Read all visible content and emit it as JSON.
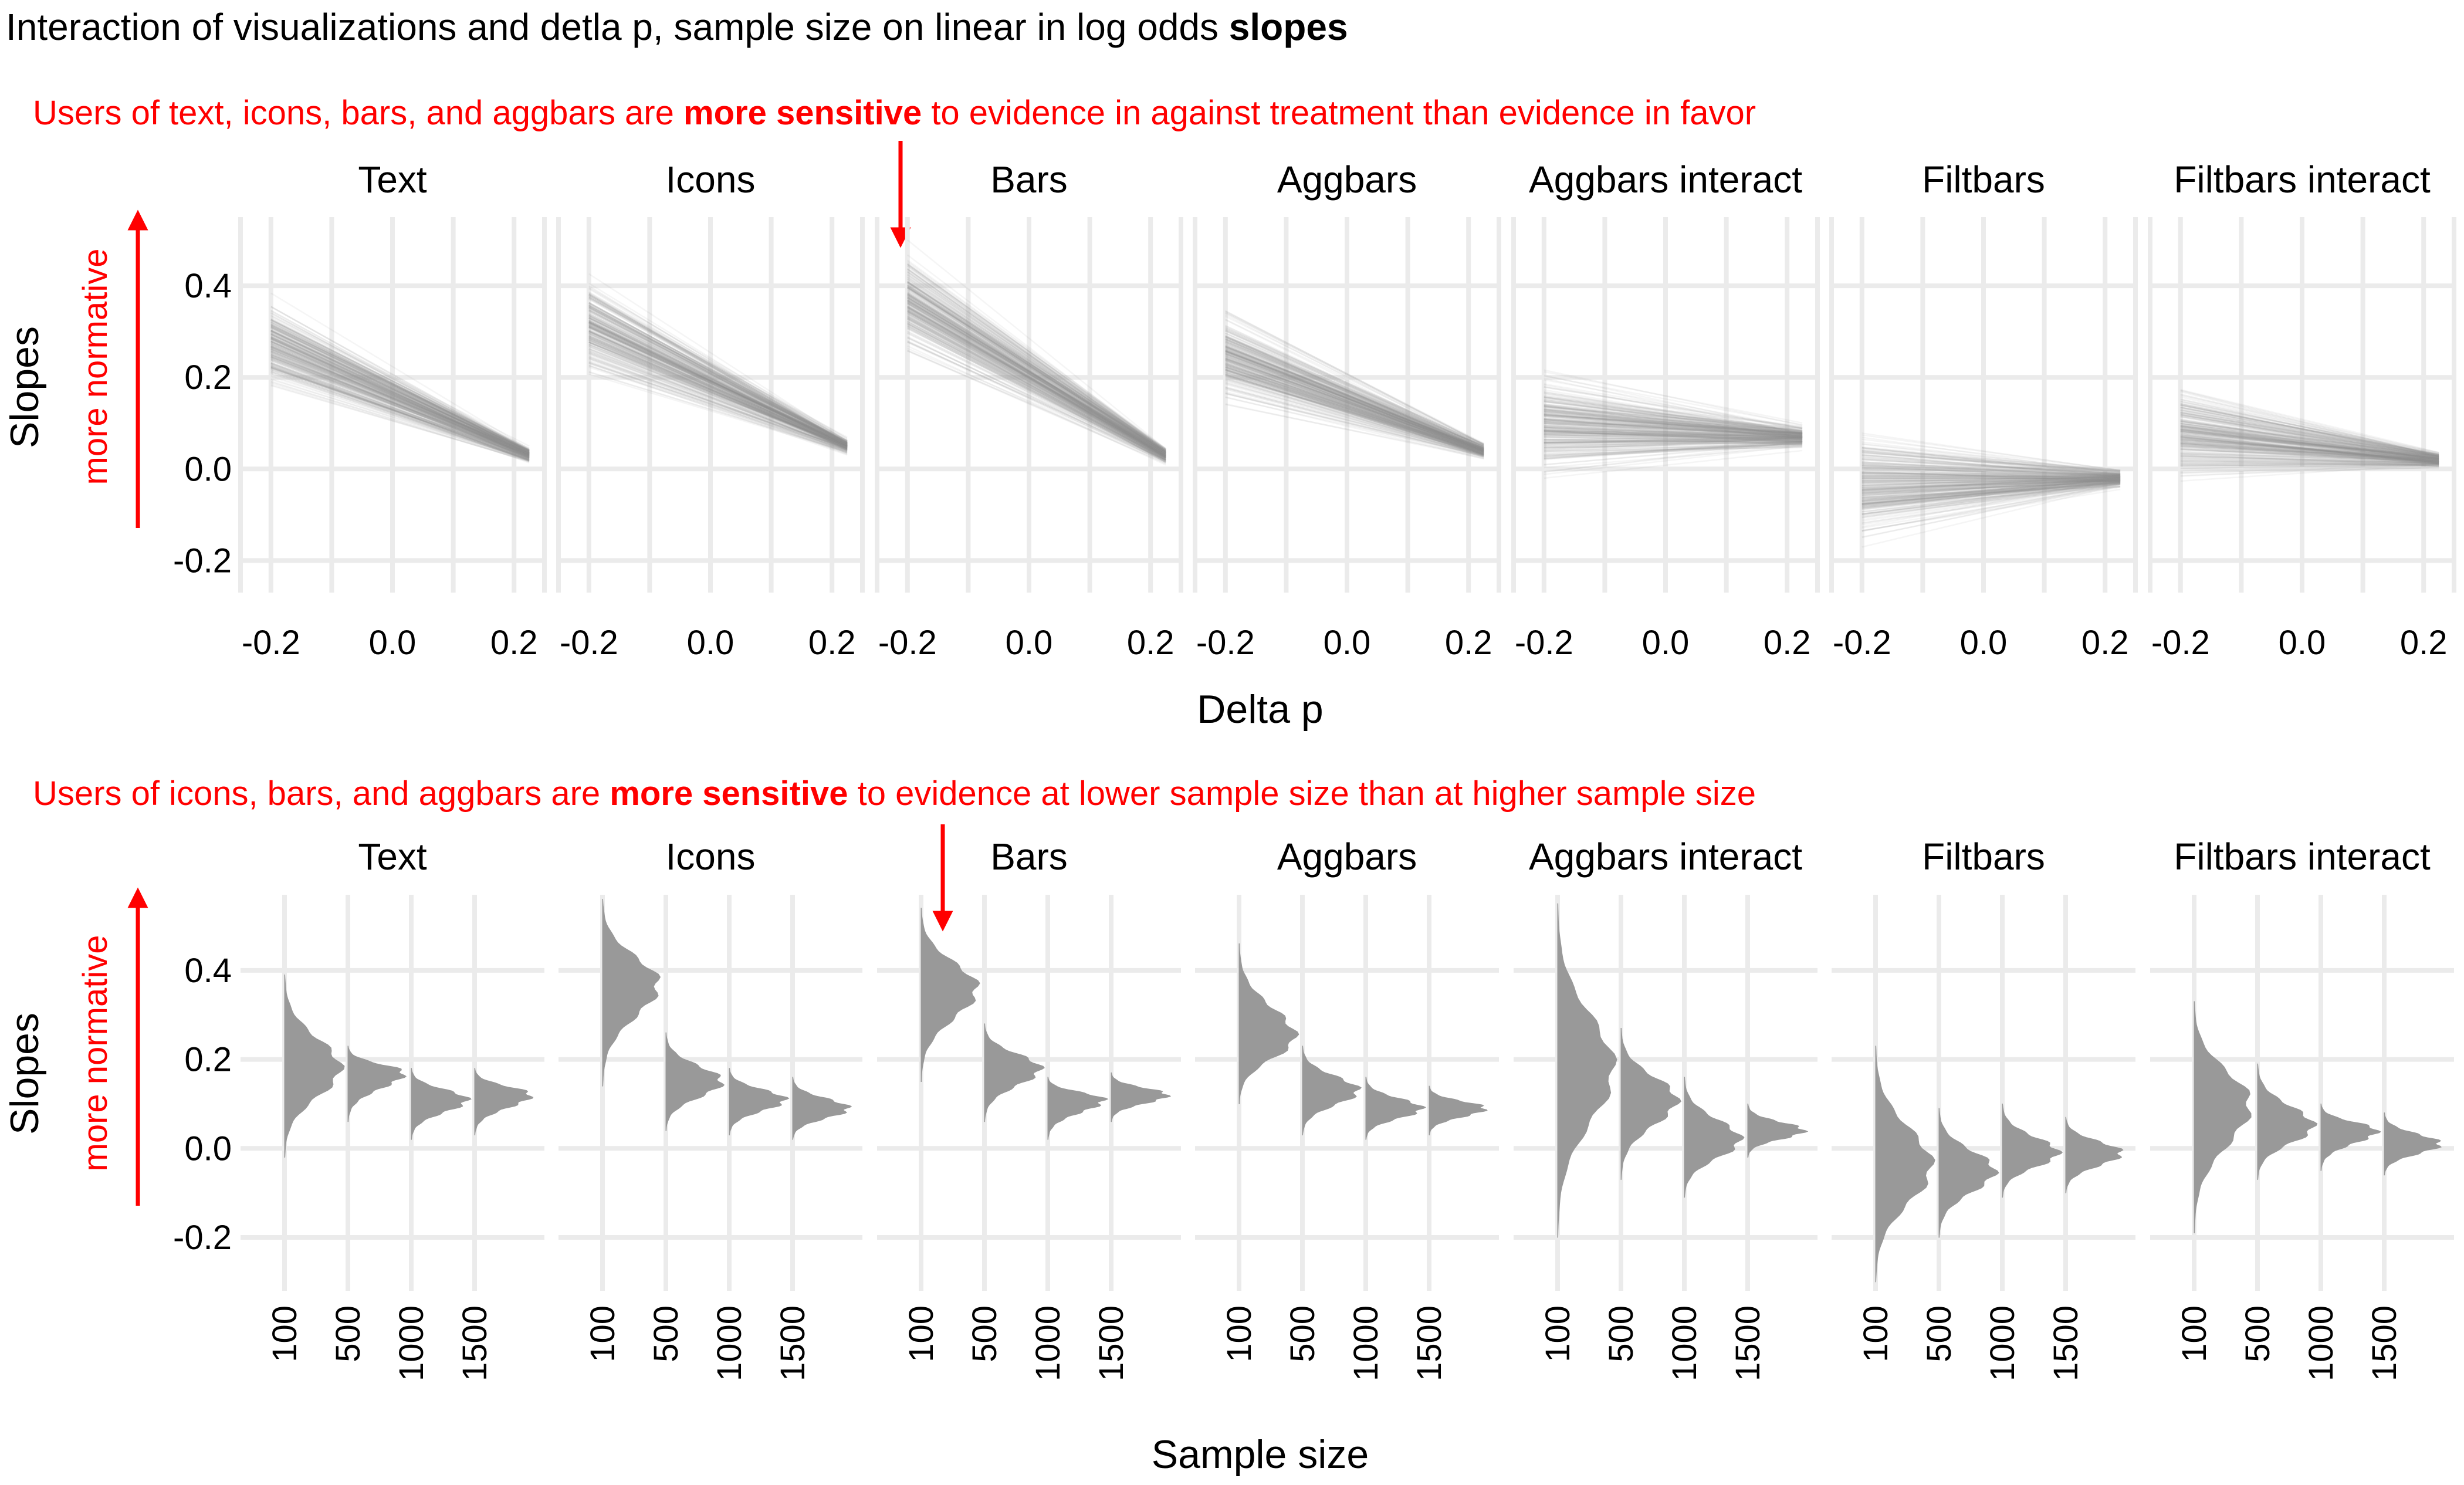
{
  "title": {
    "prefix": "Interaction of visualizations and detla p, sample size on linear in log odds ",
    "bold": "slopes"
  },
  "annotations": {
    "top": {
      "before": "Users of text, icons, bars, and aggbars are ",
      "bold": "more sensitive",
      "after": " to evidence in against treatment than evidence in favor"
    },
    "bottom": {
      "before": "Users of icons, bars, and aggbars are ",
      "bold": "more sensitive",
      "after": " to evidence at lower sample size than at higher sample size"
    },
    "more_normative": "more normative"
  },
  "colors": {
    "annotation": "#ff0000",
    "lines": "#8c8c8c",
    "densities": "#999999",
    "grid": "#ebebeb"
  },
  "chart_data": [
    {
      "type": "line",
      "description_of_marks": "many semi-transparent posterior draw lines per facet",
      "facets": [
        "Text",
        "Icons",
        "Bars",
        "Aggbars",
        "Aggbars interact",
        "Filtbars",
        "Filtbars interact"
      ],
      "xlabel": "Delta p",
      "ylabel": "Slopes",
      "x_tick_labels": [
        [
          "-0.2",
          "0.0",
          "0.2"
        ],
        [
          "-0.2",
          "0.0",
          "0.2"
        ],
        [
          "-0.2",
          "0.0",
          "0.2"
        ],
        [
          "-0.2",
          "0.0",
          "0.2"
        ],
        [
          "-0.2",
          "0.0",
          "0.2"
        ],
        [
          "-0.2",
          "0.0",
          "0.2"
        ],
        [
          "-0.2",
          "0.0",
          "0.2"
        ]
      ],
      "x_ticks": [
        -0.2,
        0.0,
        0.2
      ],
      "xlim": [
        -0.25,
        0.25
      ],
      "y_ticks": [
        -0.2,
        0.0,
        0.2,
        0.4
      ],
      "y_tick_labels": [
        "-0.2",
        "0.0",
        "0.2",
        "0.4"
      ],
      "ylim": [
        -0.27,
        0.55
      ],
      "series": [
        {
          "facet": "Text",
          "x": [
            -0.2,
            0.225
          ],
          "mean": [
            0.27,
            0.03
          ],
          "spread": [
            0.1,
            0.025
          ]
        },
        {
          "facet": "Icons",
          "x": [
            -0.2,
            0.225
          ],
          "mean": [
            0.31,
            0.05
          ],
          "spread": [
            0.11,
            0.025
          ]
        },
        {
          "facet": "Bars",
          "x": [
            -0.2,
            0.225
          ],
          "mean": [
            0.37,
            0.03
          ],
          "spread": [
            0.1,
            0.025
          ]
        },
        {
          "facet": "Aggbars",
          "x": [
            -0.2,
            0.225
          ],
          "mean": [
            0.25,
            0.04
          ],
          "spread": [
            0.1,
            0.025
          ]
        },
        {
          "facet": "Aggbars interact",
          "x": [
            -0.2,
            0.225
          ],
          "mean": [
            0.1,
            0.07
          ],
          "spread": [
            0.11,
            0.035
          ]
        },
        {
          "facet": "Filtbars",
          "x": [
            -0.2,
            0.225
          ],
          "mean": [
            -0.03,
            -0.02
          ],
          "spread": [
            0.12,
            0.03
          ]
        },
        {
          "facet": "Filtbars interact",
          "x": [
            -0.2,
            0.225
          ],
          "mean": [
            0.08,
            0.02
          ],
          "spread": [
            0.1,
            0.025
          ]
        }
      ],
      "grid": true
    },
    {
      "type": "area",
      "description_of_marks": "half-eye density distributions per sample size",
      "facets": [
        "Text",
        "Icons",
        "Bars",
        "Aggbars",
        "Aggbars interact",
        "Filtbars",
        "Filtbars interact"
      ],
      "xlabel": "Sample size",
      "ylabel": "Slopes",
      "categories": [
        "100",
        "500",
        "1000",
        "1500"
      ],
      "y_ticks": [
        -0.2,
        0.0,
        0.2,
        0.4
      ],
      "y_tick_labels": [
        "-0.2",
        "0.0",
        "0.2",
        "0.4"
      ],
      "ylim": [
        -0.32,
        0.57
      ],
      "series": [
        {
          "facet": "Text",
          "mode": [
            0.18,
            0.17,
            0.11,
            0.12
          ],
          "range_low": [
            -0.02,
            0.06,
            0.02,
            0.03
          ],
          "range_high": [
            0.39,
            0.23,
            0.18,
            0.18
          ]
        },
        {
          "facet": "Icons",
          "mode": [
            0.37,
            0.15,
            0.11,
            0.09
          ],
          "range_low": [
            0.14,
            0.04,
            0.03,
            0.02
          ],
          "range_high": [
            0.56,
            0.26,
            0.18,
            0.16
          ]
        },
        {
          "facet": "Bars",
          "mode": [
            0.36,
            0.18,
            0.11,
            0.12
          ],
          "range_low": [
            0.15,
            0.06,
            0.02,
            0.06
          ],
          "range_high": [
            0.54,
            0.28,
            0.16,
            0.17
          ]
        },
        {
          "facet": "Aggbars",
          "mode": [
            0.25,
            0.13,
            0.09,
            0.09
          ],
          "range_low": [
            0.1,
            0.03,
            0.02,
            0.03
          ],
          "range_high": [
            0.46,
            0.23,
            0.16,
            0.14
          ]
        },
        {
          "facet": "Aggbars interact",
          "mode": [
            0.18,
            0.11,
            0.02,
            0.04
          ],
          "range_low": [
            -0.2,
            -0.07,
            -0.11,
            -0.02
          ],
          "range_high": [
            0.55,
            0.27,
            0.16,
            0.1
          ]
        },
        {
          "facet": "Filtbars",
          "mode": [
            -0.04,
            -0.05,
            -0.01,
            -0.01
          ],
          "range_low": [
            -0.3,
            -0.2,
            -0.11,
            -0.1
          ],
          "range_high": [
            0.23,
            0.09,
            0.1,
            0.07
          ]
        },
        {
          "facet": "Filtbars interact",
          "mode": [
            0.1,
            0.05,
            0.04,
            0.01
          ],
          "range_low": [
            -0.19,
            -0.07,
            -0.05,
            -0.06
          ],
          "range_high": [
            0.33,
            0.19,
            0.1,
            0.08
          ]
        }
      ],
      "grid": true
    }
  ]
}
